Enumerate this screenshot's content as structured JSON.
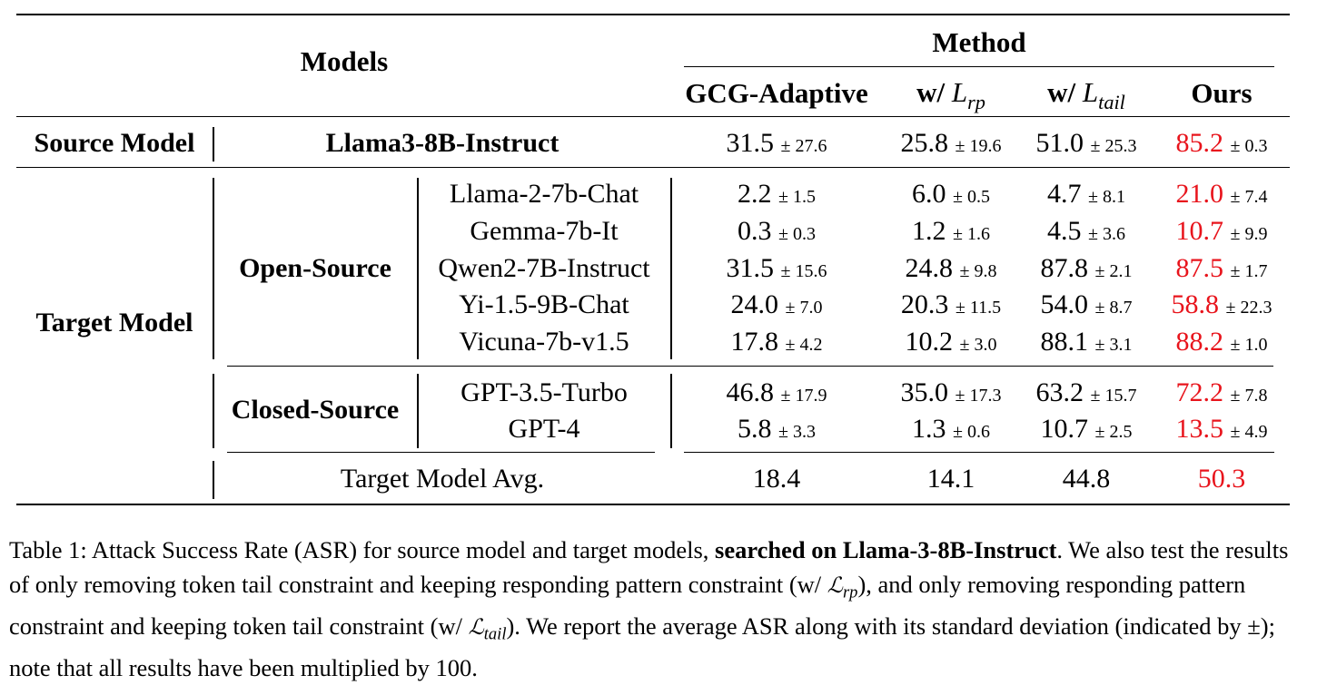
{
  "header": {
    "models": "Models",
    "method": "Method",
    "col1": "GCG-Adaptive",
    "col2_prefix": "w/",
    "col2_sym": "L",
    "col2_sub": "rp",
    "col3_prefix": "w/",
    "col3_sym": "L",
    "col3_sub": "tail",
    "col4": "Ours"
  },
  "source": {
    "label": "Source Model",
    "model": "Llama3-8B-Instruct",
    "cells": [
      {
        "v": "31.5",
        "pm": "± 27.6"
      },
      {
        "v": "25.8",
        "pm": "± 19.6"
      },
      {
        "v": "51.0",
        "pm": "± 25.3"
      },
      {
        "v": "85.2",
        "pm": "± 0.3"
      }
    ]
  },
  "target": {
    "label": "Target Model",
    "open_label": "Open-Source",
    "closed_label": "Closed-Source",
    "rows": [
      {
        "model": "Llama-2-7b-Chat",
        "cells": [
          {
            "v": "2.2",
            "pm": "± 1.5"
          },
          {
            "v": "6.0",
            "pm": "± 0.5"
          },
          {
            "v": "4.7",
            "pm": "± 8.1"
          },
          {
            "v": "21.0",
            "pm": "± 7.4"
          }
        ]
      },
      {
        "model": "Gemma-7b-It",
        "cells": [
          {
            "v": "0.3",
            "pm": "± 0.3"
          },
          {
            "v": "1.2",
            "pm": "± 1.6"
          },
          {
            "v": "4.5",
            "pm": "± 3.6"
          },
          {
            "v": "10.7",
            "pm": "± 9.9"
          }
        ]
      },
      {
        "model": "Qwen2-7B-Instruct",
        "cells": [
          {
            "v": "31.5",
            "pm": "± 15.6"
          },
          {
            "v": "24.8",
            "pm": "± 9.8"
          },
          {
            "v": "87.8",
            "pm": "± 2.1"
          },
          {
            "v": "87.5",
            "pm": "± 1.7"
          }
        ]
      },
      {
        "model": "Yi-1.5-9B-Chat",
        "cells": [
          {
            "v": "24.0",
            "pm": "± 7.0"
          },
          {
            "v": "20.3",
            "pm": "± 11.5"
          },
          {
            "v": "54.0",
            "pm": "± 8.7"
          },
          {
            "v": "58.8",
            "pm": "± 22.3"
          }
        ]
      },
      {
        "model": "Vicuna-7b-v1.5",
        "cells": [
          {
            "v": "17.8",
            "pm": "± 4.2"
          },
          {
            "v": "10.2",
            "pm": "± 3.0"
          },
          {
            "v": "88.1",
            "pm": "± 3.1"
          },
          {
            "v": "88.2",
            "pm": "± 1.0"
          }
        ]
      },
      {
        "model": "GPT-3.5-Turbo",
        "cells": [
          {
            "v": "46.8",
            "pm": "± 17.9"
          },
          {
            "v": "35.0",
            "pm": "± 17.3"
          },
          {
            "v": "63.2",
            "pm": "± 15.7"
          },
          {
            "v": "72.2",
            "pm": "± 7.8"
          }
        ]
      },
      {
        "model": "GPT-4",
        "cells": [
          {
            "v": "5.8",
            "pm": "± 3.3"
          },
          {
            "v": "1.3",
            "pm": "± 0.6"
          },
          {
            "v": "10.7",
            "pm": "± 2.5"
          },
          {
            "v": "13.5",
            "pm": "± 4.9"
          }
        ]
      }
    ],
    "avg": {
      "label": "Target Model Avg.",
      "values": [
        "18.4",
        "14.1",
        "44.8",
        "50.3"
      ]
    }
  },
  "caption": {
    "p1": "Table 1: Attack Success Rate (ASR) for source model and target models, ",
    "bold": "searched on Llama-3-8B-Instruct",
    "p2": ". We also test the results of only removing token tail constraint and keeping responding pattern constraint (w/ ",
    "sym1": "ℒ",
    "sub1": "rp",
    "p3": "), and only removing responding pattern constraint and keeping token tail constraint (w/ ",
    "sym2": "ℒ",
    "sub2": "tail",
    "p4": "). We report the average ASR along with its standard deviation (indicated by ±); note that all results have been multiplied by 100."
  },
  "colors": {
    "highlight": "#e8141c"
  }
}
